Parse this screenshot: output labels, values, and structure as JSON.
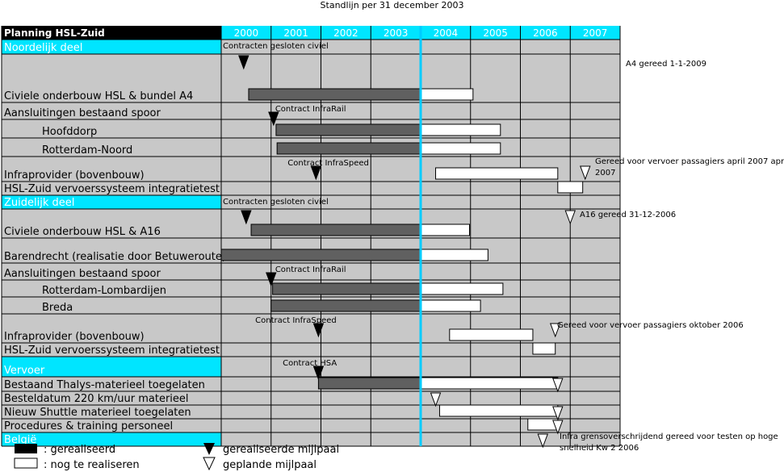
{
  "header_note": "Standlijn per 31 december 2003",
  "chart_title": "Planning HSL-Zuid",
  "chart_data": {
    "type": "gantt",
    "years": [
      "2000",
      "2001",
      "2002",
      "2003",
      "2004",
      "2005",
      "2006",
      "2007"
    ],
    "x_range": [
      2000,
      2008
    ],
    "status_line": 2004.0,
    "colors": {
      "header_bg": "#000000",
      "year_bg": "#00e5ff",
      "section_bg": "#00e5ff",
      "chart_bg": "#c8c8c8",
      "realised": "#606060",
      "todo": "#ffffff",
      "statusline": "#00ccff"
    },
    "rows": [
      {
        "label": "Noordelijk deel",
        "section": true,
        "note": "Contracten gesloten civiel",
        "note_at": 2000.0
      },
      {
        "label": "Civiele onderbouw HSL & bundel A4",
        "bars": [
          [
            2000.55,
            2004.0,
            "realised"
          ],
          [
            2004.0,
            2005.05,
            "todo"
          ]
        ],
        "milestones": [
          {
            "at": 2000.45,
            "kind": "done"
          }
        ],
        "side_note": "A4 gereed 1-1-2009"
      },
      {
        "label": "Aansluitingen bestaand spoor",
        "note": "Contract InfraRail",
        "note_at": 2001.05,
        "milestones": [
          {
            "at": 2001.05,
            "kind": "done"
          }
        ]
      },
      {
        "label": "Hoofddorp",
        "indent": true,
        "bars": [
          [
            2001.1,
            2004.0,
            "realised"
          ],
          [
            2004.0,
            2005.6,
            "todo"
          ]
        ]
      },
      {
        "label": "Rotterdam-Noord",
        "indent": true,
        "bars": [
          [
            2001.12,
            2004.0,
            "realised"
          ],
          [
            2004.0,
            2005.6,
            "todo"
          ]
        ]
      },
      {
        "label": "Infraprovider (bovenbouw)",
        "note": "Contract InfraSpeed",
        "note_at": 2001.3,
        "bars": [
          [
            2004.3,
            2006.75,
            "todo"
          ]
        ],
        "milestones": [
          {
            "at": 2001.9,
            "kind": "done"
          },
          {
            "at": 2007.3,
            "kind": "planned"
          }
        ],
        "side_note": "Gereed voor vervoer  passagiers april 2007 april 2007"
      },
      {
        "label": "HSL-Zuid vervoerssysteem integratietest",
        "bars": [
          [
            2006.75,
            2007.25,
            "todo"
          ]
        ]
      },
      {
        "label": "Zuidelijk deel",
        "section": true,
        "note": "Contracten gesloten civiel",
        "note_at": 2000.0
      },
      {
        "label": "Civiele onderbouw HSL & A16",
        "bars": [
          [
            2000.6,
            2004.0,
            "realised"
          ],
          [
            2004.0,
            2004.98,
            "todo"
          ]
        ],
        "milestones": [
          {
            "at": 2000.5,
            "kind": "done"
          },
          {
            "at": 2007.0,
            "kind": "planned"
          }
        ],
        "side_note": "A16 gereed 31-12-2006"
      },
      {
        "label": "Barendrecht (realisatie door Betuweroute)",
        "bars": [
          [
            2000.0,
            2004.0,
            "realised"
          ],
          [
            2004.0,
            2005.35,
            "todo"
          ]
        ]
      },
      {
        "label": "Aansluitingen bestaand spoor",
        "note": "Contract InfraRail",
        "note_at": 2001.05,
        "milestones": [
          {
            "at": 2001.0,
            "kind": "done"
          }
        ]
      },
      {
        "label": "Rotterdam-Lombardijen",
        "indent": true,
        "bars": [
          [
            2001.03,
            2004.0,
            "realised"
          ],
          [
            2004.0,
            2005.65,
            "todo"
          ]
        ]
      },
      {
        "label": "Breda",
        "indent": true,
        "bars": [
          [
            2001.0,
            2004.0,
            "realised"
          ],
          [
            2004.0,
            2005.2,
            "todo"
          ]
        ]
      },
      {
        "label": "Infraprovider (bovenbouw)",
        "note": "Contract InfraSpeed",
        "note_at": 2000.65,
        "bars": [
          [
            2004.58,
            2006.25,
            "todo"
          ]
        ],
        "milestones": [
          {
            "at": 2001.95,
            "kind": "done"
          },
          {
            "at": 2006.7,
            "kind": "planned"
          }
        ],
        "side_note": "Gereed voor vervoer  passagiers oktober 2006"
      },
      {
        "label": "HSL-Zuid vervoerssysteem integratietest",
        "bars": [
          [
            2006.25,
            2006.7,
            "todo"
          ]
        ]
      },
      {
        "label": "Vervoer",
        "section": true,
        "note": "Contract HSA",
        "note_at": 2001.2,
        "milestones": [
          {
            "at": 2001.95,
            "kind": "done"
          }
        ]
      },
      {
        "label": "Bestaand Thalys-materieel toegelaten",
        "bars": [
          [
            2001.95,
            2004.0,
            "realised"
          ],
          [
            2004.0,
            2006.75,
            "todo"
          ]
        ],
        "milestones": [
          {
            "at": 2006.75,
            "kind": "planned"
          }
        ]
      },
      {
        "label": "Besteldatum 220 km/uur materieel",
        "milestones": [
          {
            "at": 2004.3,
            "kind": "planned"
          }
        ]
      },
      {
        "label": "Nieuw Shuttle materieel toegelaten",
        "bars": [
          [
            2004.38,
            2006.75,
            "todo"
          ]
        ],
        "milestones": [
          {
            "at": 2006.75,
            "kind": "planned"
          }
        ]
      },
      {
        "label": "Procedures & training personeel",
        "bars": [
          [
            2006.15,
            2006.75,
            "todo"
          ]
        ],
        "milestones": [
          {
            "at": 2006.75,
            "kind": "planned"
          }
        ]
      },
      {
        "label": "België",
        "section": true,
        "milestones": [
          {
            "at": 2006.45,
            "kind": "planned"
          }
        ],
        "side_note": "Infra grensoverschrijdend gereed voor testen op hoge snelheid  Kw 2 2006"
      }
    ]
  },
  "legend": {
    "realised": ": gerealiseerd",
    "todo": ": nog te realiseren",
    "done_milestone": "gerealiseerde mijlpaal",
    "planned_milestone": "geplande mijlpaal"
  }
}
